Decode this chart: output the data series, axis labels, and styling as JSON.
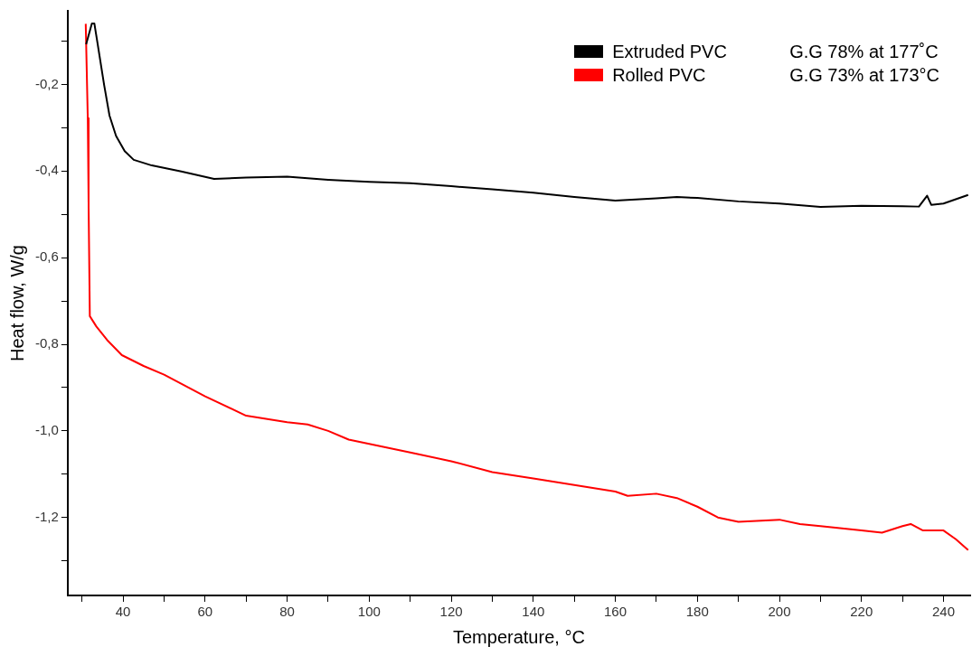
{
  "chart_data": {
    "type": "line",
    "xlabel": "Temperature, °C",
    "ylabel": "Heat flow, W/g",
    "xlim": [
      26.5,
      246.5
    ],
    "ylim": [
      -1.38,
      -0.03
    ],
    "xticks": [
      {
        "value": 30,
        "label": null
      },
      40,
      {
        "value": 50,
        "label": null
      },
      60,
      {
        "value": 70,
        "label": null
      },
      80,
      {
        "value": 90,
        "label": null
      },
      100,
      {
        "value": 110,
        "label": null
      },
      120,
      {
        "value": 130,
        "label": null
      },
      140,
      {
        "value": 150,
        "label": null
      },
      160,
      {
        "value": 170,
        "label": null
      },
      180,
      {
        "value": 190,
        "label": null
      },
      200,
      {
        "value": 210,
        "label": null
      },
      220,
      {
        "value": 230,
        "label": null
      },
      240
    ],
    "yticks": [
      {
        "value": -0.1,
        "label": null
      },
      {
        "value": -0.2,
        "label": "-0,2"
      },
      {
        "value": -0.3,
        "label": null
      },
      {
        "value": -0.4,
        "label": "-0,4"
      },
      {
        "value": -0.5,
        "label": null
      },
      {
        "value": -0.6,
        "label": "-0,6"
      },
      {
        "value": -0.7,
        "label": null
      },
      {
        "value": -0.8,
        "label": "-0,8"
      },
      {
        "value": -0.9,
        "label": null
      },
      {
        "value": -1.0,
        "label": "-1,0"
      },
      {
        "value": -1.1,
        "label": null
      },
      {
        "value": -1.2,
        "label": "-1,2"
      },
      {
        "value": -1.3,
        "label": null
      }
    ],
    "grid": false,
    "legend": "top right",
    "marker": "none",
    "line_style": "solid",
    "annotations": [
      "G.G 78% at 177˚C",
      "G.G 73% at 173°C"
    ],
    "series": [
      {
        "name": "Extruded PVC",
        "color": "#000000",
        "x": [
          31.0,
          32.4,
          33.0,
          33.7,
          35.4,
          36.7,
          38.3,
          40.4,
          42.6,
          47.0,
          54.2,
          62.2,
          70,
          80,
          90,
          100,
          110,
          120,
          130,
          140,
          150,
          160,
          170,
          175,
          180,
          190,
          200,
          210,
          220,
          230,
          234,
          236,
          237,
          240,
          246
        ],
        "values": [
          -0.107,
          -0.059,
          -0.059,
          -0.1,
          -0.202,
          -0.272,
          -0.319,
          -0.354,
          -0.374,
          -0.387,
          -0.401,
          -0.418,
          -0.415,
          -0.413,
          -0.42,
          -0.425,
          -0.428,
          -0.435,
          -0.442,
          -0.45,
          -0.46,
          -0.468,
          -0.463,
          -0.46,
          -0.462,
          -0.47,
          -0.475,
          -0.483,
          -0.48,
          -0.481,
          -0.482,
          -0.457,
          -0.478,
          -0.475,
          -0.455
        ]
      },
      {
        "name": "Rolled PVC",
        "color": "#ff0000",
        "x": [
          30.9,
          31.4,
          31.6,
          31.9,
          33.5,
          36.1,
          39.7,
          45,
          50,
          60,
          70,
          80,
          85,
          90,
          95,
          100,
          110,
          120,
          130,
          140,
          150,
          160,
          163,
          170,
          175,
          180,
          185,
          190,
          200,
          205,
          210,
          220,
          225,
          230,
          232,
          235,
          240,
          243,
          246
        ],
        "values": [
          -0.06,
          -0.278,
          -0.477,
          -0.735,
          -0.759,
          -0.79,
          -0.825,
          -0.85,
          -0.87,
          -0.92,
          -0.965,
          -0.98,
          -0.985,
          -1.0,
          -1.02,
          -1.03,
          -1.05,
          -1.07,
          -1.095,
          -1.11,
          -1.125,
          -1.14,
          -1.15,
          -1.145,
          -1.155,
          -1.175,
          -1.2,
          -1.21,
          -1.205,
          -1.215,
          -1.22,
          -1.23,
          -1.235,
          -1.22,
          -1.215,
          -1.23,
          -1.23,
          -1.25,
          -1.275
        ]
      }
    ]
  }
}
